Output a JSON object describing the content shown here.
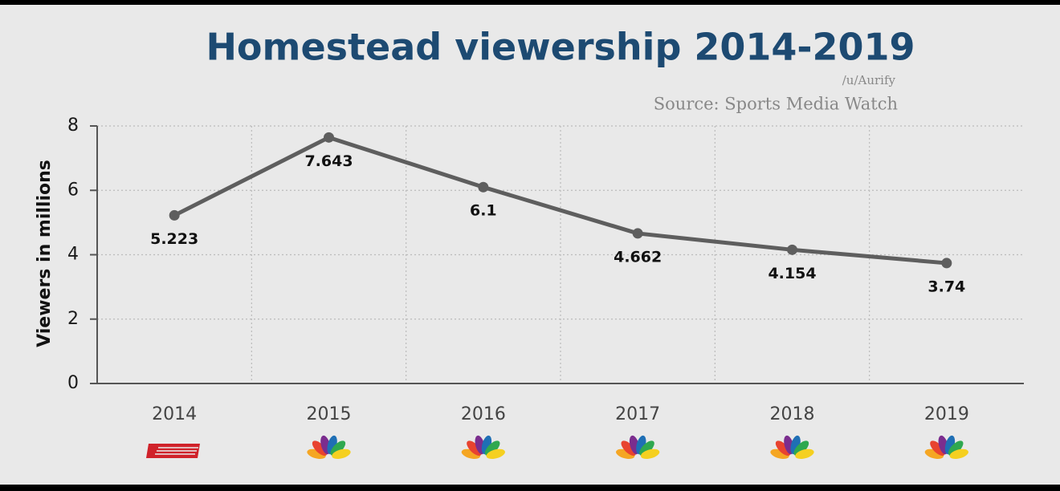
{
  "chart_data": {
    "type": "line",
    "title": "Homestead viewership 2014-2019",
    "subtitle": "/u/Aurify",
    "source": "Source: Sports Media Watch",
    "y_label": "Viewers in millions",
    "categories": [
      "2014",
      "2015",
      "2016",
      "2017",
      "2018",
      "2019"
    ],
    "values": [
      5.223,
      7.643,
      6.1,
      4.662,
      4.154,
      3.74
    ],
    "color": "#5e5e5e",
    "ylim": [
      0,
      8
    ],
    "yticks": [
      0,
      2,
      4,
      6,
      8
    ],
    "grid": true
  }
}
